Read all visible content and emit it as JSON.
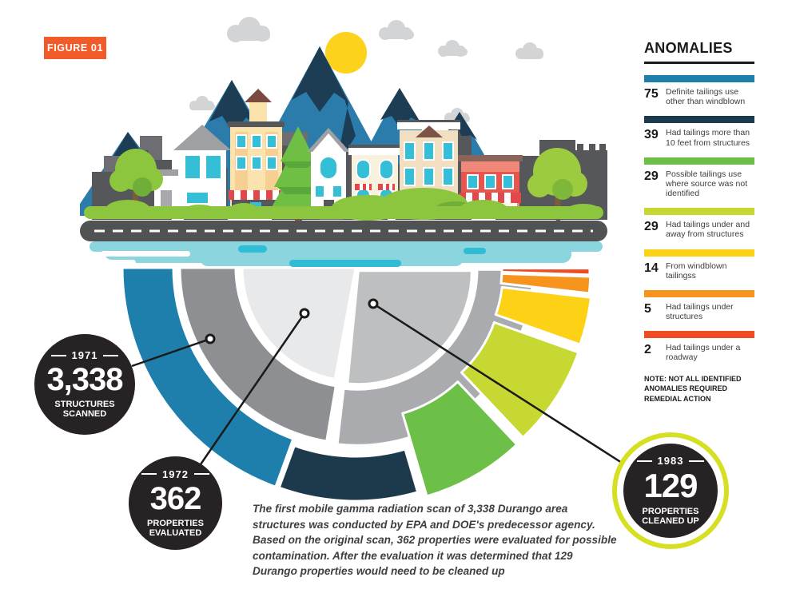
{
  "figure_label": "FIGURE 01",
  "legend": {
    "note": "NOTE: NOT ALL IDENTIFIED ANOMALIES REQUIRED REMEDIAL ACTION"
  },
  "caption": "The first mobile gamma radiation scan of 3,338 Durango area structures was conducted by EPA and DOE's predecessor agency. Based on the original scan, 362 properties were evaluated for possible contamination. After the evaluation it was determined that 129 Durango properties would need to be cleaned up",
  "chart_data": {
    "type": "pie",
    "title": "ANOMALIES",
    "layout": "inverted half-donut below town illustration, small slices fanned out to the right, legend at right",
    "categories": [
      "Definite tailings use other than windblown",
      "Had tailings more than 10 feet from structures",
      "Possible tailings use where source was not identified",
      "Had tailings under and away from structures",
      "From windblown tailingss",
      "Had tailings under structures",
      "Had tailings under a roadway"
    ],
    "values": [
      75,
      39,
      29,
      29,
      14,
      5,
      2
    ],
    "colors": [
      "#1e7fad",
      "#1d3a4d",
      "#6cbf47",
      "#c6d831",
      "#fdd116",
      "#f7941d",
      "#f04c23"
    ],
    "annotations": [
      {
        "year": "1971",
        "value": "3,338",
        "label": "STRUCTURES SCANNED"
      },
      {
        "year": "1972",
        "value": "362",
        "label": "PROPERTIES EVALUATED"
      },
      {
        "year": "1983",
        "value": "129",
        "label": "PROPERTIES CLEANED UP"
      }
    ],
    "note": "NOTE: NOT ALL IDENTIFIED ANOMALIES REQUIRED REMEDIAL ACTION"
  }
}
